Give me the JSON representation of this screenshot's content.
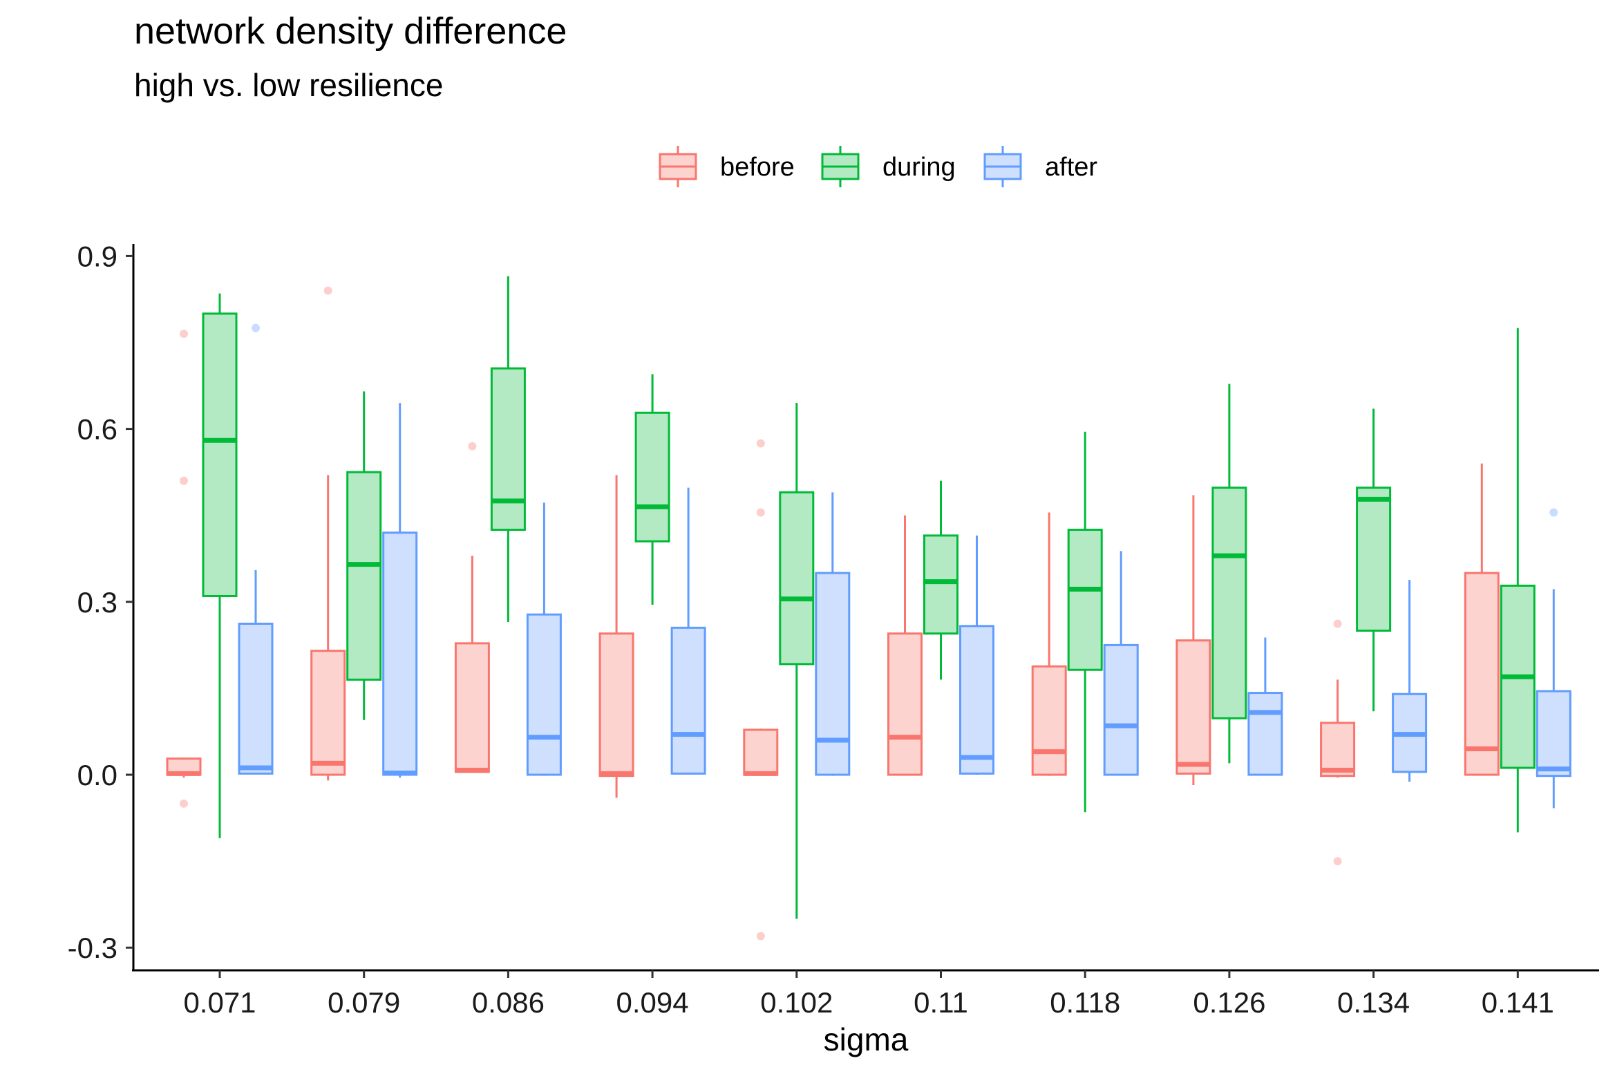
{
  "chart_data": {
    "type": "boxplot",
    "title": "network density difference",
    "subtitle": "high vs. low resilience",
    "xlabel": "sigma",
    "ylabel": "",
    "ylim": [
      -0.34,
      0.92
    ],
    "y_ticks": [
      -0.3,
      0.0,
      0.3,
      0.6,
      0.9
    ],
    "y_tick_labels": [
      "-0.3",
      "0.0",
      "0.3",
      "0.6",
      "0.9"
    ],
    "grid": false,
    "legend_position": "top",
    "categories": [
      "0.071",
      "0.079",
      "0.086",
      "0.094",
      "0.102",
      "0.11",
      "0.118",
      "0.126",
      "0.134",
      "0.141"
    ],
    "series": [
      {
        "name": "before",
        "stroke": "#F8766D",
        "fill": "#FDD3D0",
        "boxes": [
          {
            "whisker_low": -0.005,
            "q1": 0.0,
            "median": 0.002,
            "q3": 0.028,
            "whisker_high": 0.03,
            "outliers": [
              0.765,
              0.51,
              -0.05
            ]
          },
          {
            "whisker_low": -0.01,
            "q1": 0.0,
            "median": 0.02,
            "q3": 0.215,
            "whisker_high": 0.52,
            "outliers": [
              0.84
            ]
          },
          {
            "whisker_low": 0.005,
            "q1": 0.005,
            "median": 0.008,
            "q3": 0.228,
            "whisker_high": 0.38,
            "outliers": [
              0.57
            ]
          },
          {
            "whisker_low": -0.04,
            "q1": -0.002,
            "median": 0.002,
            "q3": 0.245,
            "whisker_high": 0.52,
            "outliers": []
          },
          {
            "whisker_low": 0.0,
            "q1": 0.0,
            "median": 0.002,
            "q3": 0.078,
            "whisker_high": 0.08,
            "outliers": [
              0.575,
              0.455,
              -0.28
            ]
          },
          {
            "whisker_low": 0.0,
            "q1": 0.0,
            "median": 0.065,
            "q3": 0.245,
            "whisker_high": 0.45,
            "outliers": []
          },
          {
            "whisker_low": -0.002,
            "q1": 0.0,
            "median": 0.04,
            "q3": 0.188,
            "whisker_high": 0.455,
            "outliers": []
          },
          {
            "whisker_low": -0.018,
            "q1": 0.002,
            "median": 0.018,
            "q3": 0.233,
            "whisker_high": 0.485,
            "outliers": []
          },
          {
            "whisker_low": -0.005,
            "q1": -0.002,
            "median": 0.008,
            "q3": 0.09,
            "whisker_high": 0.165,
            "outliers": [
              0.262,
              -0.15
            ]
          },
          {
            "whisker_low": 0.0,
            "q1": 0.0,
            "median": 0.045,
            "q3": 0.35,
            "whisker_high": 0.54,
            "outliers": []
          }
        ]
      },
      {
        "name": "during",
        "stroke": "#00BA38",
        "fill": "#B3EAC4",
        "boxes": [
          {
            "whisker_low": -0.11,
            "q1": 0.31,
            "median": 0.58,
            "q3": 0.8,
            "whisker_high": 0.835,
            "outliers": []
          },
          {
            "whisker_low": 0.095,
            "q1": 0.165,
            "median": 0.365,
            "q3": 0.525,
            "whisker_high": 0.665,
            "outliers": []
          },
          {
            "whisker_low": 0.265,
            "q1": 0.425,
            "median": 0.475,
            "q3": 0.705,
            "whisker_high": 0.865,
            "outliers": []
          },
          {
            "whisker_low": 0.295,
            "q1": 0.405,
            "median": 0.465,
            "q3": 0.628,
            "whisker_high": 0.695,
            "outliers": []
          },
          {
            "whisker_low": -0.25,
            "q1": 0.192,
            "median": 0.305,
            "q3": 0.49,
            "whisker_high": 0.645,
            "outliers": []
          },
          {
            "whisker_low": 0.165,
            "q1": 0.245,
            "median": 0.335,
            "q3": 0.415,
            "whisker_high": 0.51,
            "outliers": []
          },
          {
            "whisker_low": -0.065,
            "q1": 0.182,
            "median": 0.322,
            "q3": 0.425,
            "whisker_high": 0.595,
            "outliers": []
          },
          {
            "whisker_low": 0.02,
            "q1": 0.098,
            "median": 0.38,
            "q3": 0.498,
            "whisker_high": 0.678,
            "outliers": []
          },
          {
            "whisker_low": 0.11,
            "q1": 0.25,
            "median": 0.478,
            "q3": 0.498,
            "whisker_high": 0.635,
            "outliers": []
          },
          {
            "whisker_low": -0.1,
            "q1": 0.012,
            "median": 0.17,
            "q3": 0.328,
            "whisker_high": 0.775,
            "outliers": []
          }
        ]
      },
      {
        "name": "after",
        "stroke": "#619CFF",
        "fill": "#CFE0FF",
        "boxes": [
          {
            "whisker_low": 0.002,
            "q1": 0.002,
            "median": 0.012,
            "q3": 0.262,
            "whisker_high": 0.355,
            "outliers": [
              0.775
            ]
          },
          {
            "whisker_low": -0.005,
            "q1": 0.0,
            "median": 0.003,
            "q3": 0.42,
            "whisker_high": 0.645,
            "outliers": []
          },
          {
            "whisker_low": -0.002,
            "q1": 0.0,
            "median": 0.065,
            "q3": 0.278,
            "whisker_high": 0.472,
            "outliers": []
          },
          {
            "whisker_low": 0.002,
            "q1": 0.002,
            "median": 0.07,
            "q3": 0.255,
            "whisker_high": 0.498,
            "outliers": []
          },
          {
            "whisker_low": -0.002,
            "q1": 0.0,
            "median": 0.06,
            "q3": 0.35,
            "whisker_high": 0.49,
            "outliers": []
          },
          {
            "whisker_low": 0.0,
            "q1": 0.002,
            "median": 0.03,
            "q3": 0.258,
            "whisker_high": 0.415,
            "outliers": []
          },
          {
            "whisker_low": 0.0,
            "q1": 0.0,
            "median": 0.085,
            "q3": 0.225,
            "whisker_high": 0.388,
            "outliers": []
          },
          {
            "whisker_low": 0.0,
            "q1": 0.0,
            "median": 0.108,
            "q3": 0.142,
            "whisker_high": 0.238,
            "outliers": []
          },
          {
            "whisker_low": -0.012,
            "q1": 0.005,
            "median": 0.07,
            "q3": 0.14,
            "whisker_high": 0.338,
            "outliers": []
          },
          {
            "whisker_low": -0.058,
            "q1": -0.002,
            "median": 0.01,
            "q3": 0.145,
            "whisker_high": 0.322,
            "outliers": [
              0.455
            ]
          }
        ]
      }
    ]
  }
}
